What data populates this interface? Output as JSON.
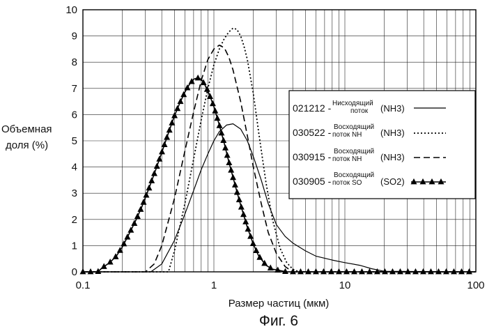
{
  "y_axis_label": [
    "Объемная",
    "доля (%)"
  ],
  "x_axis_label": "Размер частиц (мкм)",
  "caption": "Фиг. 6",
  "legend": [
    {
      "code": "021212 -",
      "desc": [
        "Нисходящий",
        "поток"
      ],
      "chem": "(NH3)"
    },
    {
      "code": "030522 -",
      "desc": [
        "Восходящий",
        "поток NH"
      ],
      "chem": "(NH3)"
    },
    {
      "code": "030915 -",
      "desc": [
        "Восходящий",
        "поток NH"
      ],
      "chem": "(NH3)"
    },
    {
      "code": "030905 -",
      "desc": [
        "Восходящий",
        "поток SO"
      ],
      "chem": "(SO2)"
    }
  ],
  "chart_data": {
    "type": "line",
    "x_scale": "log",
    "xlim": [
      0.1,
      100
    ],
    "ylim": [
      0,
      10
    ],
    "x_tick_labels": [
      "0.1",
      "1",
      "10",
      "100"
    ],
    "y_tick_labels": [
      "0",
      "1",
      "2",
      "3",
      "4",
      "5",
      "6",
      "7",
      "8",
      "9",
      "10"
    ],
    "xlabel": "Размер частиц (мкм)",
    "ylabel": "Объемная доля (%)",
    "grid": true,
    "legend_position": "right",
    "series": [
      {
        "name": "021212 - Нисходящий поток (NH3)",
        "style": "solid",
        "color": "#000000",
        "x": [
          0.1,
          0.33,
          0.4,
          0.5,
          0.6,
          0.7,
          0.8,
          0.9,
          1.0,
          1.1,
          1.25,
          1.4,
          1.6,
          1.8,
          2.0,
          2.3,
          2.6,
          3.0,
          3.5,
          4.0,
          5.0,
          6.0,
          8.0,
          10.0,
          13.0,
          16.0,
          20.0,
          100.0
        ],
        "y": [
          0,
          0,
          0.3,
          1.2,
          2.2,
          3.1,
          3.9,
          4.5,
          5.0,
          5.35,
          5.6,
          5.65,
          5.45,
          5.0,
          4.4,
          3.5,
          2.6,
          1.8,
          1.35,
          1.1,
          0.8,
          0.6,
          0.45,
          0.35,
          0.25,
          0.12,
          0.02,
          0
        ]
      },
      {
        "name": "030522 - Восходящий поток NH (NH3)",
        "style": "dotted",
        "color": "#000000",
        "x": [
          0.1,
          0.45,
          0.5,
          0.6,
          0.7,
          0.8,
          0.9,
          1.0,
          1.1,
          1.2,
          1.3,
          1.4,
          1.5,
          1.6,
          1.7,
          1.8,
          2.0,
          2.2,
          2.5,
          2.8,
          3.2,
          3.6,
          4.0,
          4.5,
          100.0
        ],
        "y": [
          0,
          0,
          0.8,
          2.6,
          4.3,
          5.8,
          7.0,
          7.9,
          8.5,
          8.9,
          9.15,
          9.3,
          9.25,
          9.0,
          8.6,
          8.1,
          6.8,
          5.3,
          3.4,
          2.0,
          0.9,
          0.35,
          0.1,
          0,
          0
        ]
      },
      {
        "name": "030915 - Восходящий поток NH (NH3)",
        "style": "dashed",
        "color": "#000000",
        "x": [
          0.1,
          0.3,
          0.35,
          0.4,
          0.5,
          0.6,
          0.7,
          0.8,
          0.9,
          1.0,
          1.1,
          1.2,
          1.3,
          1.4,
          1.6,
          1.8,
          2.0,
          2.3,
          2.6,
          3.0,
          3.5,
          4.0,
          100.0
        ],
        "y": [
          0,
          0,
          0.3,
          1.0,
          2.8,
          4.6,
          6.1,
          7.3,
          8.1,
          8.5,
          8.65,
          8.55,
          8.2,
          7.7,
          6.5,
          5.2,
          4.0,
          2.6,
          1.5,
          0.7,
          0.2,
          0,
          0
        ]
      },
      {
        "name": "030905 - Восходящий поток SO (SO2)",
        "style": "solid-triangles",
        "color": "#000000",
        "x": [
          0.1,
          0.115,
          0.13,
          0.14,
          0.16,
          0.18,
          0.2,
          0.22,
          0.25,
          0.28,
          0.32,
          0.36,
          0.4,
          0.45,
          0.5,
          0.55,
          0.6,
          0.65,
          0.7,
          0.75,
          0.8,
          0.85,
          0.9,
          0.95,
          1.0,
          1.1,
          1.2,
          1.3,
          1.4,
          1.5,
          1.6,
          1.8,
          2.0,
          2.2,
          2.5,
          2.8,
          3.2,
          3.6,
          4.0,
          5.0,
          6.0,
          8.0,
          10.0,
          15.0,
          25.0,
          40.0,
          60.0,
          100.0
        ],
        "y": [
          0,
          0,
          0,
          0.15,
          0.35,
          0.6,
          0.95,
          1.35,
          1.9,
          2.45,
          3.2,
          3.9,
          4.55,
          5.3,
          5.95,
          6.45,
          6.85,
          7.15,
          7.35,
          7.4,
          7.35,
          7.15,
          6.9,
          6.6,
          6.3,
          5.6,
          4.9,
          4.2,
          3.6,
          3.05,
          2.55,
          1.7,
          1.05,
          0.6,
          0.25,
          0.1,
          0.05,
          0,
          0,
          0,
          0,
          0,
          0,
          0,
          0,
          0,
          0,
          0
        ]
      }
    ]
  }
}
